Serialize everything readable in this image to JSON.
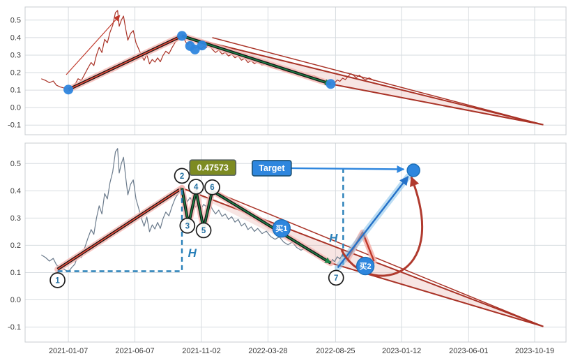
{
  "chart_data": {
    "type": "line",
    "title": "",
    "description": "Two stacked price panels with trend wedge, pivot annotations and measured-move target projection",
    "x_axis": {
      "xlim": [
        0,
        1000
      ],
      "ticks": [
        {
          "t": 80,
          "label": "2021-01-07"
        },
        {
          "t": 203,
          "label": "2021-06-07"
        },
        {
          "t": 326,
          "label": "2021-11-02"
        },
        {
          "t": 449,
          "label": "2022-03-28"
        },
        {
          "t": 574,
          "label": "2022-08-25"
        },
        {
          "t": 696,
          "label": "2023-01-12"
        },
        {
          "t": 820,
          "label": "2023-06-01"
        },
        {
          "t": 942,
          "label": "2023-10-19"
        }
      ]
    },
    "y_axis": {
      "ylim": [
        -0.155,
        0.575
      ],
      "ticks": [
        {
          "v": -0.1,
          "label": "-0.1"
        },
        {
          "v": 0.0,
          "label": "0.0"
        },
        {
          "v": 0.1,
          "label": "0.1"
        },
        {
          "v": 0.2,
          "label": "0.2"
        },
        {
          "v": 0.3,
          "label": "0.3"
        },
        {
          "v": 0.4,
          "label": "0.4"
        },
        {
          "v": 0.5,
          "label": "0.5"
        }
      ]
    },
    "price_series": [
      [
        30,
        0.165
      ],
      [
        38,
        0.155
      ],
      [
        45,
        0.142
      ],
      [
        52,
        0.152
      ],
      [
        58,
        0.128
      ],
      [
        65,
        0.118
      ],
      [
        72,
        0.112
      ],
      [
        80,
        0.103
      ],
      [
        86,
        0.118
      ],
      [
        92,
        0.131
      ],
      [
        98,
        0.165
      ],
      [
        104,
        0.155
      ],
      [
        110,
        0.19
      ],
      [
        116,
        0.225
      ],
      [
        122,
        0.258
      ],
      [
        127,
        0.24
      ],
      [
        132,
        0.3
      ],
      [
        137,
        0.345
      ],
      [
        142,
        0.315
      ],
      [
        147,
        0.39
      ],
      [
        152,
        0.37
      ],
      [
        157,
        0.43
      ],
      [
        162,
        0.47
      ],
      [
        167,
        0.543
      ],
      [
        171,
        0.555
      ],
      [
        174,
        0.465
      ],
      [
        178,
        0.5
      ],
      [
        182,
        0.523
      ],
      [
        186,
        0.45
      ],
      [
        190,
        0.385
      ],
      [
        195,
        0.424
      ],
      [
        200,
        0.44
      ],
      [
        205,
        0.37
      ],
      [
        210,
        0.335
      ],
      [
        215,
        0.3
      ],
      [
        220,
        0.27
      ],
      [
        225,
        0.304
      ],
      [
        230,
        0.25
      ],
      [
        235,
        0.275
      ],
      [
        240,
        0.26
      ],
      [
        245,
        0.284
      ],
      [
        250,
        0.262
      ],
      [
        255,
        0.298
      ],
      [
        260,
        0.322
      ],
      [
        266,
        0.308
      ],
      [
        272,
        0.345
      ],
      [
        278,
        0.375
      ],
      [
        284,
        0.392
      ],
      [
        290,
        0.404
      ],
      [
        295,
        0.386
      ],
      [
        300,
        0.36
      ],
      [
        305,
        0.376
      ],
      [
        310,
        0.355
      ],
      [
        315,
        0.34
      ],
      [
        320,
        0.352
      ],
      [
        325,
        0.333
      ],
      [
        330,
        0.35
      ],
      [
        335,
        0.342
      ],
      [
        340,
        0.36
      ],
      [
        346,
        0.333
      ],
      [
        352,
        0.315
      ],
      [
        358,
        0.329
      ],
      [
        364,
        0.306
      ],
      [
        370,
        0.315
      ],
      [
        376,
        0.295
      ],
      [
        382,
        0.305
      ],
      [
        388,
        0.285
      ],
      [
        394,
        0.295
      ],
      [
        400,
        0.271
      ],
      [
        406,
        0.281
      ],
      [
        412,
        0.258
      ],
      [
        418,
        0.268
      ],
      [
        424,
        0.251
      ],
      [
        430,
        0.262
      ],
      [
        438,
        0.243
      ],
      [
        446,
        0.252
      ],
      [
        454,
        0.232
      ],
      [
        462,
        0.222
      ],
      [
        470,
        0.231
      ],
      [
        478,
        0.212
      ],
      [
        486,
        0.202
      ],
      [
        494,
        0.212
      ],
      [
        502,
        0.192
      ],
      [
        510,
        0.182
      ],
      [
        518,
        0.19
      ],
      [
        526,
        0.175
      ],
      [
        534,
        0.182
      ],
      [
        542,
        0.168
      ],
      [
        550,
        0.155
      ],
      [
        558,
        0.142
      ],
      [
        564,
        0.132
      ],
      [
        568,
        0.148
      ],
      [
        572,
        0.14
      ],
      [
        577,
        0.158
      ],
      [
        582,
        0.15
      ],
      [
        587,
        0.168
      ],
      [
        592,
        0.16
      ],
      [
        597,
        0.178
      ],
      [
        602,
        0.194
      ],
      [
        607,
        0.185
      ],
      [
        612,
        0.172
      ],
      [
        618,
        0.185
      ],
      [
        624,
        0.168
      ],
      [
        630,
        0.158
      ],
      [
        636,
        0.17
      ],
      [
        642,
        0.16
      ],
      [
        646,
        0.152
      ]
    ],
    "panels": [
      {
        "id": "top",
        "price_color": "#a93226",
        "price_end_t": 646,
        "show_x_labels": false,
        "trend_up": [
          [
            80,
            0.103
          ],
          [
            290,
            0.41
          ]
        ],
        "trend_down": [
          [
            290,
            0.41
          ],
          [
            565,
            0.135
          ]
        ],
        "wedge": {
          "upper_start": [
            290,
            0.41
          ],
          "upper2_start": [
            346,
            0.4
          ],
          "lower_start": [
            565,
            0.135
          ],
          "apex": [
            958,
            -0.098
          ]
        },
        "markers": [
          [
            80,
            0.103
          ],
          [
            290,
            0.41
          ],
          [
            305,
            0.352
          ],
          [
            314,
            0.332
          ],
          [
            327,
            0.355
          ],
          [
            565,
            0.135
          ]
        ],
        "thin_arrow": [
          [
            76,
            0.188
          ],
          [
            175,
            0.527
          ]
        ]
      },
      {
        "id": "bottom",
        "price_color": "#6b7b8c",
        "price_end_t": 592,
        "show_x_labels": true,
        "trend_up": [
          [
            60,
            0.112
          ],
          [
            290,
            0.41
          ]
        ],
        "trend_down": [
          [
            290,
            0.41
          ],
          [
            302,
            0.275
          ],
          [
            316,
            0.4
          ],
          [
            330,
            0.262
          ],
          [
            346,
            0.4
          ],
          [
            565,
            0.135
          ]
        ],
        "wedge": {
          "upper_start": [
            290,
            0.41
          ],
          "upper2_start": [
            346,
            0.4
          ],
          "lower_start": [
            565,
            0.135
          ],
          "apex": [
            958,
            -0.098
          ]
        },
        "markers": [],
        "annotations": {
          "numbered_points": [
            {
              "n": "1",
              "t": 60,
              "v": 0.072
            },
            {
              "n": "2",
              "t": 290,
              "v": 0.455
            },
            {
              "n": "3",
              "t": 300,
              "v": 0.272
            },
            {
              "n": "4",
              "t": 316,
              "v": 0.415
            },
            {
              "n": "5",
              "t": 330,
              "v": 0.255
            },
            {
              "n": "6",
              "t": 346,
              "v": 0.413
            },
            {
              "n": "7",
              "t": 575,
              "v": 0.081
            }
          ],
          "buy_labels": [
            {
              "text": "买1",
              "t": 474,
              "v": 0.262
            },
            {
              "text": "买2",
              "t": 629,
              "v": 0.124
            }
          ],
          "value_label": {
            "text": "0.47573",
            "t": 347,
            "v": 0.485
          },
          "target_label": {
            "text": "Target",
            "t": 456,
            "v": 0.483
          },
          "target_point": {
            "t": 718,
            "v": 0.475
          },
          "target_arrow": [
            [
              492,
              0.483
            ],
            [
              700,
              0.479
            ]
          ],
          "h_measure_1": {
            "path": [
              [
                60,
                0.105
              ],
              [
                290,
                0.105
              ],
              [
                290,
                0.405
              ]
            ],
            "label": "H",
            "label_t": 301,
            "label_v": 0.158
          },
          "h_measure_2": {
            "path": [
              [
                588,
                0.483
              ],
              [
                588,
                0.128
              ]
            ],
            "label": "H",
            "label_t": 562,
            "label_v": 0.212
          },
          "projection_zigzag": [
            [
              596,
              0.148
            ],
            [
              624,
              0.248
            ],
            [
              645,
              0.142
            ]
          ],
          "curved_arrow": [
            [
              585,
              0.183
            ],
            [
              628,
              0.01
            ],
            [
              790,
              0.06
            ],
            [
              714,
              0.45
            ]
          ],
          "band_arrow": [
            [
              578,
              0.118
            ],
            [
              708,
              0.452
            ]
          ]
        }
      }
    ],
    "colors": {
      "grid": "#d6dbdf",
      "panel_border": "#c8cdd1",
      "tick_text": "#3c3c3c",
      "halo": "#f5b7b1",
      "trend_outline": "#141414",
      "trend_core_up": "#e74c3c",
      "trend_core_down": "#1e8449",
      "wedge_line": "#a93226",
      "wedge_fill": "rgba(217,136,128,0.22)",
      "marker": "#2e86de",
      "marker_edge": "#1b6fb8",
      "dashed": "#2980b9",
      "value_box_fill": "#7d8b22",
      "value_box_border": "#566061",
      "target_box_fill": "#2e86de",
      "target_box_border": "#1b4f72",
      "buy_fill": "#2e86de",
      "number_text": "#2471a3",
      "curved_arrow": "#b03a2e",
      "band_halo": "rgba(133,193,233,0.55)",
      "band_line": "#2471c8",
      "thin_arrow": "#c0392b",
      "projection_line": "#c0392b"
    }
  }
}
